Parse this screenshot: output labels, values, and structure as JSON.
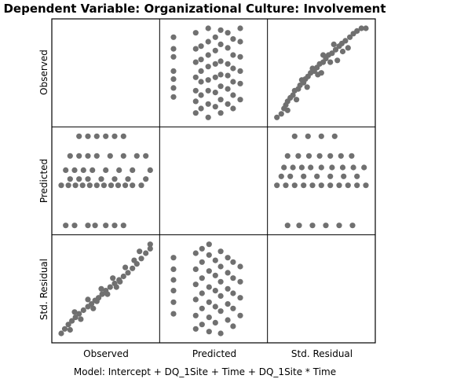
{
  "chart_data": {
    "type": "scatter",
    "title": "Dependent Variable: Organizational Culture: Involvement",
    "footnote": "Model: Intercept + DQ_1Site + Time + DQ_1Site * Time",
    "variables": [
      "Observed",
      "Predicted",
      "Std. Residual"
    ],
    "grid": false,
    "legend": "none",
    "point_color": "#707070",
    "panels": [
      {
        "row": "Observed",
        "col": "Predicted",
        "x_var": "Predicted",
        "y_var": "Observed",
        "points": [
          [
            0.05,
            0.23
          ],
          [
            0.05,
            0.33
          ],
          [
            0.05,
            0.43
          ],
          [
            0.05,
            0.52
          ],
          [
            0.05,
            0.68
          ],
          [
            0.05,
            0.77
          ],
          [
            0.05,
            0.9
          ],
          [
            0.3,
            0.05
          ],
          [
            0.3,
            0.18
          ],
          [
            0.3,
            0.3
          ],
          [
            0.3,
            0.45
          ],
          [
            0.3,
            0.62
          ],
          [
            0.3,
            0.77
          ],
          [
            0.3,
            0.95
          ],
          [
            0.36,
            0.1
          ],
          [
            0.36,
            0.25
          ],
          [
            0.36,
            0.4
          ],
          [
            0.36,
            0.52
          ],
          [
            0.36,
            0.65
          ],
          [
            0.36,
            0.8
          ],
          [
            0.44,
            0.0
          ],
          [
            0.44,
            0.15
          ],
          [
            0.44,
            0.3
          ],
          [
            0.44,
            0.42
          ],
          [
            0.44,
            0.57
          ],
          [
            0.44,
            0.7
          ],
          [
            0.44,
            0.85
          ],
          [
            0.44,
            1.0
          ],
          [
            0.52,
            0.12
          ],
          [
            0.52,
            0.28
          ],
          [
            0.52,
            0.45
          ],
          [
            0.52,
            0.6
          ],
          [
            0.52,
            0.75
          ],
          [
            0.52,
            0.9
          ],
          [
            0.58,
            0.05
          ],
          [
            0.58,
            0.2
          ],
          [
            0.58,
            0.35
          ],
          [
            0.58,
            0.48
          ],
          [
            0.58,
            0.63
          ],
          [
            0.58,
            0.82
          ],
          [
            0.58,
            0.98
          ],
          [
            0.66,
            0.15
          ],
          [
            0.66,
            0.32
          ],
          [
            0.66,
            0.47
          ],
          [
            0.66,
            0.6
          ],
          [
            0.66,
            0.78
          ],
          [
            0.66,
            0.95
          ],
          [
            0.72,
            0.1
          ],
          [
            0.72,
            0.25
          ],
          [
            0.72,
            0.4
          ],
          [
            0.72,
            0.55
          ],
          [
            0.72,
            0.7
          ],
          [
            0.72,
            0.88
          ],
          [
            0.8,
            0.2
          ],
          [
            0.8,
            0.38
          ],
          [
            0.8,
            0.52
          ],
          [
            0.8,
            0.68
          ],
          [
            0.8,
            0.85
          ],
          [
            0.8,
            1.0
          ]
        ]
      },
      {
        "row": "Observed",
        "col": "Std. Residual",
        "x_var": "Std. Residual",
        "y_var": "Observed",
        "points": [
          [
            0.0,
            0.0
          ],
          [
            0.05,
            0.04
          ],
          [
            0.08,
            0.1
          ],
          [
            0.1,
            0.14
          ],
          [
            0.12,
            0.18
          ],
          [
            0.15,
            0.22
          ],
          [
            0.18,
            0.25
          ],
          [
            0.2,
            0.3
          ],
          [
            0.24,
            0.32
          ],
          [
            0.26,
            0.36
          ],
          [
            0.3,
            0.39
          ],
          [
            0.32,
            0.43
          ],
          [
            0.35,
            0.46
          ],
          [
            0.38,
            0.5
          ],
          [
            0.42,
            0.52
          ],
          [
            0.45,
            0.56
          ],
          [
            0.48,
            0.6
          ],
          [
            0.52,
            0.62
          ],
          [
            0.55,
            0.66
          ],
          [
            0.58,
            0.7
          ],
          [
            0.62,
            0.72
          ],
          [
            0.66,
            0.76
          ],
          [
            0.7,
            0.8
          ],
          [
            0.73,
            0.83
          ],
          [
            0.77,
            0.86
          ],
          [
            0.82,
            0.9
          ],
          [
            0.86,
            0.94
          ],
          [
            0.9,
            0.97
          ],
          [
            0.95,
            1.0
          ],
          [
            1.0,
            1.0
          ],
          [
            0.22,
            0.2
          ],
          [
            0.34,
            0.34
          ],
          [
            0.46,
            0.48
          ],
          [
            0.6,
            0.62
          ],
          [
            0.74,
            0.74
          ],
          [
            0.28,
            0.42
          ],
          [
            0.4,
            0.55
          ],
          [
            0.52,
            0.7
          ],
          [
            0.64,
            0.82
          ],
          [
            0.12,
            0.08
          ],
          [
            0.5,
            0.5
          ],
          [
            0.68,
            0.64
          ],
          [
            0.8,
            0.78
          ]
        ]
      },
      {
        "row": "Predicted",
        "col": "Observed",
        "x_var": "Observed",
        "y_var": "Predicted",
        "points": [
          [
            0.05,
            0.0
          ],
          [
            0.15,
            0.0
          ],
          [
            0.3,
            0.0
          ],
          [
            0.38,
            0.0
          ],
          [
            0.5,
            0.0
          ],
          [
            0.6,
            0.0
          ],
          [
            0.7,
            0.0
          ],
          [
            0.0,
            0.45
          ],
          [
            0.08,
            0.45
          ],
          [
            0.16,
            0.45
          ],
          [
            0.24,
            0.45
          ],
          [
            0.32,
            0.45
          ],
          [
            0.4,
            0.45
          ],
          [
            0.48,
            0.45
          ],
          [
            0.56,
            0.45
          ],
          [
            0.64,
            0.45
          ],
          [
            0.72,
            0.45
          ],
          [
            0.8,
            0.45
          ],
          [
            0.9,
            0.45
          ],
          [
            0.1,
            0.52
          ],
          [
            0.2,
            0.52
          ],
          [
            0.3,
            0.52
          ],
          [
            0.45,
            0.52
          ],
          [
            0.6,
            0.52
          ],
          [
            0.75,
            0.52
          ],
          [
            0.95,
            0.52
          ],
          [
            0.05,
            0.62
          ],
          [
            0.15,
            0.62
          ],
          [
            0.25,
            0.62
          ],
          [
            0.35,
            0.62
          ],
          [
            0.5,
            0.62
          ],
          [
            0.65,
            0.62
          ],
          [
            0.8,
            0.62
          ],
          [
            1.0,
            0.62
          ],
          [
            0.1,
            0.78
          ],
          [
            0.2,
            0.78
          ],
          [
            0.3,
            0.78
          ],
          [
            0.4,
            0.78
          ],
          [
            0.55,
            0.78
          ],
          [
            0.7,
            0.78
          ],
          [
            0.85,
            0.78
          ],
          [
            0.95,
            0.78
          ],
          [
            0.2,
            1.0
          ],
          [
            0.3,
            1.0
          ],
          [
            0.4,
            1.0
          ],
          [
            0.5,
            1.0
          ],
          [
            0.6,
            1.0
          ],
          [
            0.7,
            1.0
          ]
        ]
      },
      {
        "row": "Predicted",
        "col": "Std. Residual",
        "x_var": "Std. Residual",
        "y_var": "Predicted",
        "points": [
          [
            0.12,
            0.0
          ],
          [
            0.25,
            0.0
          ],
          [
            0.4,
            0.0
          ],
          [
            0.55,
            0.0
          ],
          [
            0.7,
            0.0
          ],
          [
            0.85,
            0.0
          ],
          [
            0.0,
            0.45
          ],
          [
            0.1,
            0.45
          ],
          [
            0.2,
            0.45
          ],
          [
            0.3,
            0.45
          ],
          [
            0.4,
            0.45
          ],
          [
            0.5,
            0.45
          ],
          [
            0.6,
            0.45
          ],
          [
            0.7,
            0.45
          ],
          [
            0.8,
            0.45
          ],
          [
            0.9,
            0.45
          ],
          [
            1.0,
            0.45
          ],
          [
            0.05,
            0.55
          ],
          [
            0.15,
            0.55
          ],
          [
            0.3,
            0.55
          ],
          [
            0.45,
            0.55
          ],
          [
            0.6,
            0.55
          ],
          [
            0.75,
            0.55
          ],
          [
            0.9,
            0.55
          ],
          [
            0.08,
            0.65
          ],
          [
            0.18,
            0.65
          ],
          [
            0.28,
            0.65
          ],
          [
            0.38,
            0.65
          ],
          [
            0.5,
            0.65
          ],
          [
            0.62,
            0.65
          ],
          [
            0.74,
            0.65
          ],
          [
            0.86,
            0.65
          ],
          [
            0.98,
            0.65
          ],
          [
            0.12,
            0.78
          ],
          [
            0.24,
            0.78
          ],
          [
            0.36,
            0.78
          ],
          [
            0.48,
            0.78
          ],
          [
            0.6,
            0.78
          ],
          [
            0.72,
            0.78
          ],
          [
            0.84,
            0.78
          ],
          [
            0.2,
            1.0
          ],
          [
            0.35,
            1.0
          ],
          [
            0.5,
            1.0
          ],
          [
            0.65,
            1.0
          ]
        ]
      },
      {
        "row": "Std. Residual",
        "col": "Observed",
        "x_var": "Observed",
        "y_var": "Std. Residual",
        "points": [
          [
            0.0,
            0.0
          ],
          [
            0.04,
            0.05
          ],
          [
            0.08,
            0.1
          ],
          [
            0.12,
            0.14
          ],
          [
            0.16,
            0.18
          ],
          [
            0.2,
            0.22
          ],
          [
            0.25,
            0.26
          ],
          [
            0.3,
            0.3
          ],
          [
            0.34,
            0.33
          ],
          [
            0.38,
            0.37
          ],
          [
            0.42,
            0.4
          ],
          [
            0.46,
            0.44
          ],
          [
            0.5,
            0.48
          ],
          [
            0.55,
            0.52
          ],
          [
            0.6,
            0.56
          ],
          [
            0.65,
            0.6
          ],
          [
            0.7,
            0.64
          ],
          [
            0.75,
            0.68
          ],
          [
            0.8,
            0.73
          ],
          [
            0.85,
            0.78
          ],
          [
            0.9,
            0.84
          ],
          [
            0.95,
            0.9
          ],
          [
            1.0,
            0.95
          ],
          [
            1.0,
            1.0
          ],
          [
            0.15,
            0.24
          ],
          [
            0.3,
            0.38
          ],
          [
            0.45,
            0.5
          ],
          [
            0.58,
            0.62
          ],
          [
            0.72,
            0.74
          ],
          [
            0.22,
            0.16
          ],
          [
            0.36,
            0.28
          ],
          [
            0.52,
            0.44
          ],
          [
            0.66,
            0.58
          ],
          [
            0.82,
            0.82
          ],
          [
            0.1,
            0.04
          ],
          [
            0.4,
            0.36
          ],
          [
            0.62,
            0.52
          ],
          [
            0.88,
            0.92
          ]
        ]
      },
      {
        "row": "Std. Residual",
        "col": "Predicted",
        "x_var": "Predicted",
        "y_var": "Std. Residual",
        "points": [
          [
            0.05,
            0.22
          ],
          [
            0.05,
            0.35
          ],
          [
            0.05,
            0.48
          ],
          [
            0.05,
            0.6
          ],
          [
            0.05,
            0.72
          ],
          [
            0.05,
            0.85
          ],
          [
            0.3,
            0.05
          ],
          [
            0.3,
            0.2
          ],
          [
            0.3,
            0.38
          ],
          [
            0.3,
            0.55
          ],
          [
            0.3,
            0.72
          ],
          [
            0.3,
            0.9
          ],
          [
            0.37,
            0.1
          ],
          [
            0.37,
            0.28
          ],
          [
            0.37,
            0.45
          ],
          [
            0.37,
            0.62
          ],
          [
            0.37,
            0.8
          ],
          [
            0.37,
            0.95
          ],
          [
            0.45,
            0.02
          ],
          [
            0.45,
            0.18
          ],
          [
            0.45,
            0.35
          ],
          [
            0.45,
            0.52
          ],
          [
            0.45,
            0.7
          ],
          [
            0.45,
            0.88
          ],
          [
            0.45,
            1.0
          ],
          [
            0.52,
            0.12
          ],
          [
            0.52,
            0.3
          ],
          [
            0.52,
            0.48
          ],
          [
            0.52,
            0.65
          ],
          [
            0.52,
            0.82
          ],
          [
            0.58,
            0.0
          ],
          [
            0.58,
            0.25
          ],
          [
            0.58,
            0.42
          ],
          [
            0.58,
            0.58
          ],
          [
            0.58,
            0.75
          ],
          [
            0.58,
            0.92
          ],
          [
            0.66,
            0.15
          ],
          [
            0.66,
            0.33
          ],
          [
            0.66,
            0.5
          ],
          [
            0.66,
            0.68
          ],
          [
            0.66,
            0.85
          ],
          [
            0.72,
            0.08
          ],
          [
            0.72,
            0.28
          ],
          [
            0.72,
            0.45
          ],
          [
            0.72,
            0.62
          ],
          [
            0.72,
            0.8
          ],
          [
            0.8,
            0.2
          ],
          [
            0.8,
            0.4
          ],
          [
            0.8,
            0.58
          ],
          [
            0.8,
            0.75
          ]
        ]
      }
    ]
  }
}
